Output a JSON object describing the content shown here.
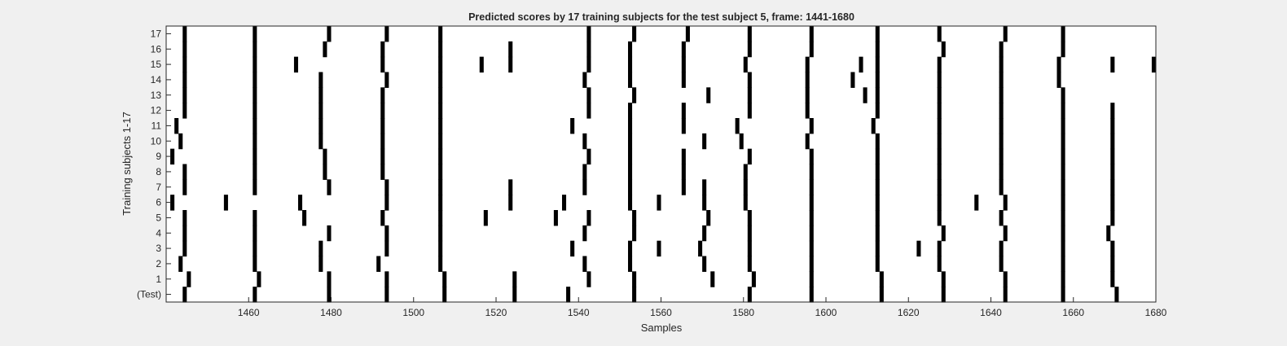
{
  "chart_data": {
    "type": "heatmap",
    "title": "Predicted scores by 17 training subjects for the test subject 5, frame: 1441-1680",
    "xlabel": "Samples",
    "ylabel": "Training subjects 1-17",
    "xlim": [
      1441,
      1680
    ],
    "xticks": [
      1460,
      1480,
      1500,
      1520,
      1540,
      1560,
      1580,
      1600,
      1620,
      1640,
      1660,
      1680
    ],
    "yticklabels": [
      "(Test)",
      "1",
      "2",
      "3",
      "4",
      "5",
      "6",
      "7",
      "8",
      "9",
      "10",
      "11",
      "12",
      "13",
      "14",
      "15",
      "16",
      "17"
    ],
    "colors": {
      "background": "#ffffff",
      "mark": "#000000",
      "figure": "#f0f0f0"
    },
    "rows": [
      {
        "label": "(Test)",
        "marks": [
          1445,
          1462,
          1480,
          1494,
          1508,
          1525,
          1538,
          1554,
          1582,
          1597,
          1614,
          1629,
          1644,
          1658,
          1671
        ]
      },
      {
        "label": "1",
        "marks": [
          1446,
          1463,
          1480,
          1494,
          1508,
          1525,
          1543,
          1554,
          1573,
          1583,
          1597,
          1614,
          1629,
          1644,
          1658,
          1670
        ]
      },
      {
        "label": "2",
        "marks": [
          1444,
          1462,
          1478,
          1492,
          1507,
          1542,
          1553,
          1571,
          1582,
          1597,
          1613,
          1628,
          1643,
          1658,
          1670
        ]
      },
      {
        "label": "3",
        "marks": [
          1445,
          1462,
          1478,
          1494,
          1507,
          1539,
          1553,
          1560,
          1570,
          1582,
          1597,
          1613,
          1623,
          1628,
          1643,
          1658,
          1670
        ]
      },
      {
        "label": "4",
        "marks": [
          1445,
          1462,
          1480,
          1494,
          1507,
          1542,
          1554,
          1571,
          1582,
          1597,
          1613,
          1629,
          1644,
          1658,
          1669
        ]
      },
      {
        "label": "5",
        "marks": [
          1445,
          1462,
          1474,
          1493,
          1507,
          1518,
          1535,
          1543,
          1554,
          1572,
          1582,
          1597,
          1613,
          1628,
          1643,
          1658,
          1670
        ]
      },
      {
        "label": "6",
        "marks": [
          1442,
          1455,
          1473,
          1494,
          1507,
          1524,
          1537,
          1553,
          1560,
          1571,
          1581,
          1597,
          1613,
          1628,
          1637,
          1644,
          1658,
          1670
        ]
      },
      {
        "label": "7",
        "marks": [
          1445,
          1462,
          1480,
          1494,
          1507,
          1524,
          1542,
          1553,
          1566,
          1571,
          1581,
          1597,
          1613,
          1628,
          1643,
          1658,
          1670
        ]
      },
      {
        "label": "8",
        "marks": [
          1445,
          1462,
          1479,
          1493,
          1507,
          1542,
          1553,
          1566,
          1581,
          1597,
          1613,
          1628,
          1643,
          1658,
          1670
        ]
      },
      {
        "label": "9",
        "marks": [
          1442,
          1462,
          1479,
          1493,
          1507,
          1543,
          1553,
          1566,
          1582,
          1597,
          1613,
          1628,
          1643,
          1658,
          1670
        ]
      },
      {
        "label": "10",
        "marks": [
          1444,
          1462,
          1478,
          1493,
          1507,
          1542,
          1553,
          1571,
          1580,
          1596,
          1613,
          1628,
          1643,
          1658,
          1670
        ]
      },
      {
        "label": "11",
        "marks": [
          1443,
          1462,
          1478,
          1493,
          1507,
          1539,
          1553,
          1566,
          1579,
          1597,
          1612,
          1628,
          1643,
          1658,
          1670
        ]
      },
      {
        "label": "12",
        "marks": [
          1445,
          1462,
          1478,
          1493,
          1507,
          1543,
          1553,
          1566,
          1582,
          1596,
          1613,
          1628,
          1643,
          1658,
          1670
        ]
      },
      {
        "label": "13",
        "marks": [
          1445,
          1462,
          1478,
          1493,
          1507,
          1543,
          1554,
          1572,
          1582,
          1596,
          1610,
          1613,
          1628,
          1643,
          1658
        ]
      },
      {
        "label": "14",
        "marks": [
          1445,
          1462,
          1478,
          1494,
          1507,
          1542,
          1553,
          1566,
          1582,
          1596,
          1607,
          1613,
          1628,
          1643,
          1657
        ]
      },
      {
        "label": "15",
        "marks": [
          1445,
          1462,
          1472,
          1493,
          1507,
          1517,
          1524,
          1543,
          1553,
          1566,
          1581,
          1596,
          1609,
          1613,
          1628,
          1643,
          1657,
          1670,
          1680
        ]
      },
      {
        "label": "16",
        "marks": [
          1445,
          1462,
          1479,
          1493,
          1507,
          1524,
          1543,
          1553,
          1566,
          1582,
          1597,
          1613,
          1629,
          1643,
          1658
        ]
      },
      {
        "label": "17",
        "marks": [
          1445,
          1462,
          1480,
          1494,
          1507,
          1543,
          1554,
          1567,
          1582,
          1597,
          1613,
          1628,
          1644,
          1658
        ]
      }
    ]
  }
}
